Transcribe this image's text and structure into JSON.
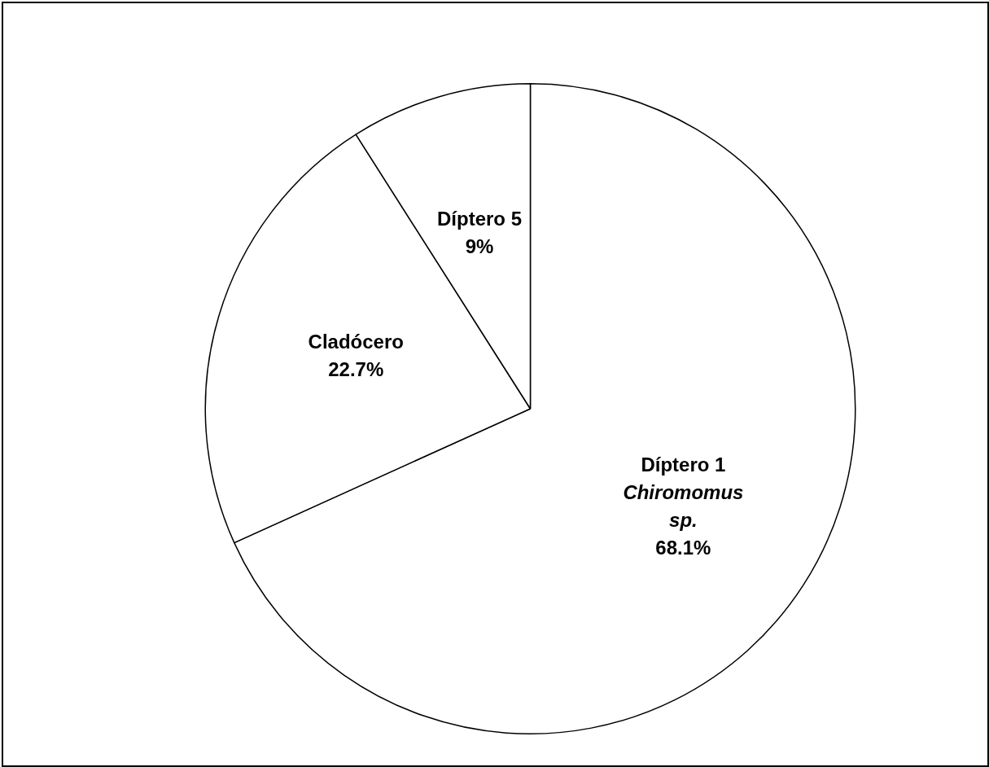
{
  "chart_data": {
    "type": "pie",
    "categories": [
      "Díptero 1\nChiromomus\nsp.",
      "Cladócero",
      "Díptero 5"
    ],
    "values": [
      68.1,
      22.7,
      9
    ],
    "colors": [
      "#ffffff",
      "#ffffff",
      "#ffffff"
    ],
    "value_labels": [
      "68.1%",
      "22.7%",
      "9%"
    ],
    "legend": false
  }
}
